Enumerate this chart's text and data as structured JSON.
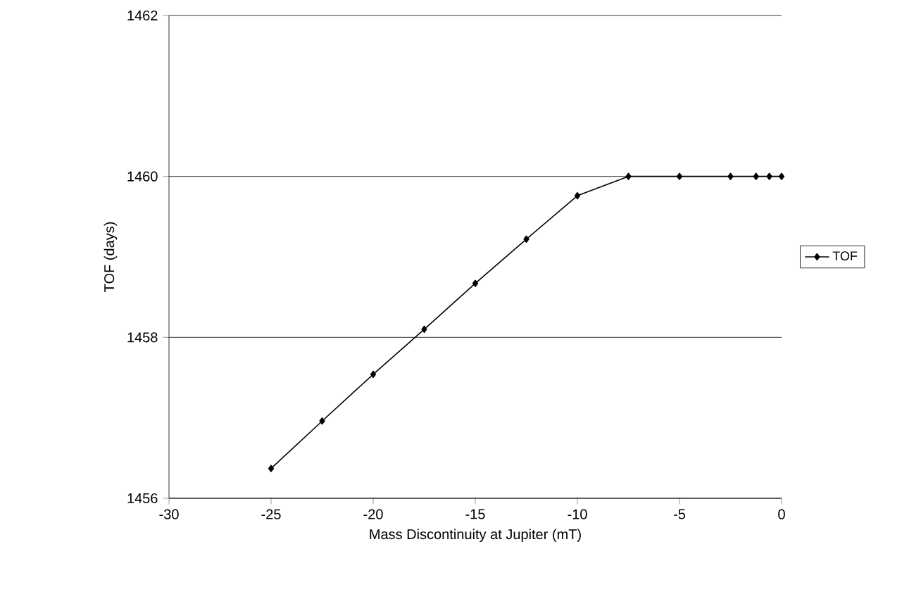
{
  "chart_data": {
    "type": "line",
    "xlabel": "Mass Discontinuity at Jupiter (mT)",
    "ylabel": "TOF (days)",
    "x": [
      -25,
      -22.5,
      -20,
      -17.5,
      -15,
      -12.5,
      -10,
      -7.5,
      -5,
      -2.5,
      -1.25,
      -0.6,
      0
    ],
    "series": [
      {
        "name": "TOF",
        "color": "#000000",
        "values": [
          1456.37,
          1456.96,
          1457.54,
          1458.1,
          1458.67,
          1459.22,
          1459.76,
          1460,
          1460,
          1460,
          1460,
          1460,
          1460
        ]
      }
    ],
    "xlim": [
      -30,
      0
    ],
    "xticks": [
      -30,
      -25,
      -20,
      -15,
      -10,
      -5,
      0
    ],
    "ylim": [
      1456,
      1462
    ],
    "yticks": [
      1456,
      1458,
      1460,
      1462
    ],
    "grid": "y",
    "legend": "right",
    "marker": "diamond",
    "line_style": "solid"
  }
}
